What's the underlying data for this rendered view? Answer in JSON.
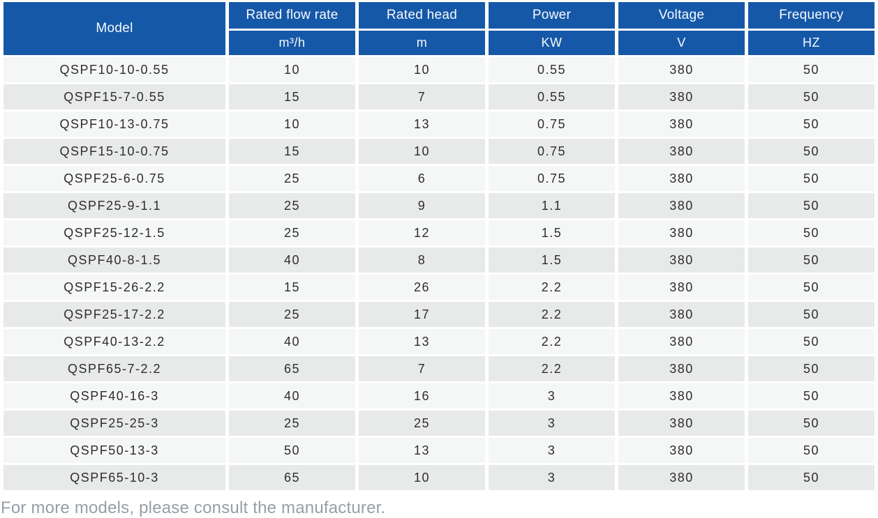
{
  "table": {
    "columns": [
      {
        "label": "Model",
        "unit": ""
      },
      {
        "label": "Rated flow rate",
        "unit": "m³/h"
      },
      {
        "label": "Rated head",
        "unit": "m"
      },
      {
        "label": "Power",
        "unit": "KW"
      },
      {
        "label": "Voltage",
        "unit": "V"
      },
      {
        "label": "Frequency",
        "unit": "HZ"
      }
    ],
    "rows": [
      {
        "model": "QSPF10-10-0.55",
        "flow": "10",
        "head": "10",
        "power": "0.55",
        "voltage": "380",
        "frequency": "50"
      },
      {
        "model": "QSPF15-7-0.55",
        "flow": "15",
        "head": "7",
        "power": "0.55",
        "voltage": "380",
        "frequency": "50"
      },
      {
        "model": "QSPF10-13-0.75",
        "flow": "10",
        "head": "13",
        "power": "0.75",
        "voltage": "380",
        "frequency": "50"
      },
      {
        "model": "QSPF15-10-0.75",
        "flow": "15",
        "head": "10",
        "power": "0.75",
        "voltage": "380",
        "frequency": "50"
      },
      {
        "model": "QSPF25-6-0.75",
        "flow": "25",
        "head": "6",
        "power": "0.75",
        "voltage": "380",
        "frequency": "50"
      },
      {
        "model": "QSPF25-9-1.1",
        "flow": "25",
        "head": "9",
        "power": "1.1",
        "voltage": "380",
        "frequency": "50"
      },
      {
        "model": "QSPF25-12-1.5",
        "flow": "25",
        "head": "12",
        "power": "1.5",
        "voltage": "380",
        "frequency": "50"
      },
      {
        "model": "QSPF40-8-1.5",
        "flow": "40",
        "head": "8",
        "power": "1.5",
        "voltage": "380",
        "frequency": "50"
      },
      {
        "model": "QSPF15-26-2.2",
        "flow": "15",
        "head": "26",
        "power": "2.2",
        "voltage": "380",
        "frequency": "50"
      },
      {
        "model": "QSPF25-17-2.2",
        "flow": "25",
        "head": "17",
        "power": "2.2",
        "voltage": "380",
        "frequency": "50"
      },
      {
        "model": "QSPF40-13-2.2",
        "flow": "40",
        "head": "13",
        "power": "2.2",
        "voltage": "380",
        "frequency": "50"
      },
      {
        "model": "QSPF65-7-2.2",
        "flow": "65",
        "head": "7",
        "power": "2.2",
        "voltage": "380",
        "frequency": "50"
      },
      {
        "model": "QSPF40-16-3",
        "flow": "40",
        "head": "16",
        "power": "3",
        "voltage": "380",
        "frequency": "50"
      },
      {
        "model": "QSPF25-25-3",
        "flow": "25",
        "head": "25",
        "power": "3",
        "voltage": "380",
        "frequency": "50"
      },
      {
        "model": "QSPF50-13-3",
        "flow": "50",
        "head": "13",
        "power": "3",
        "voltage": "380",
        "frequency": "50"
      },
      {
        "model": "QSPF65-10-3",
        "flow": "65",
        "head": "10",
        "power": "3",
        "voltage": "380",
        "frequency": "50"
      }
    ]
  },
  "footer": {
    "note": "For more models, please consult the manufacturer."
  },
  "colors": {
    "header_bg": "#1658a8",
    "header_text": "#f7fafd",
    "row_odd": "#f5f6f6",
    "row_even": "#e8eae9",
    "cell_text": "#2d2d2d",
    "footer_text": "#979ea6"
  }
}
